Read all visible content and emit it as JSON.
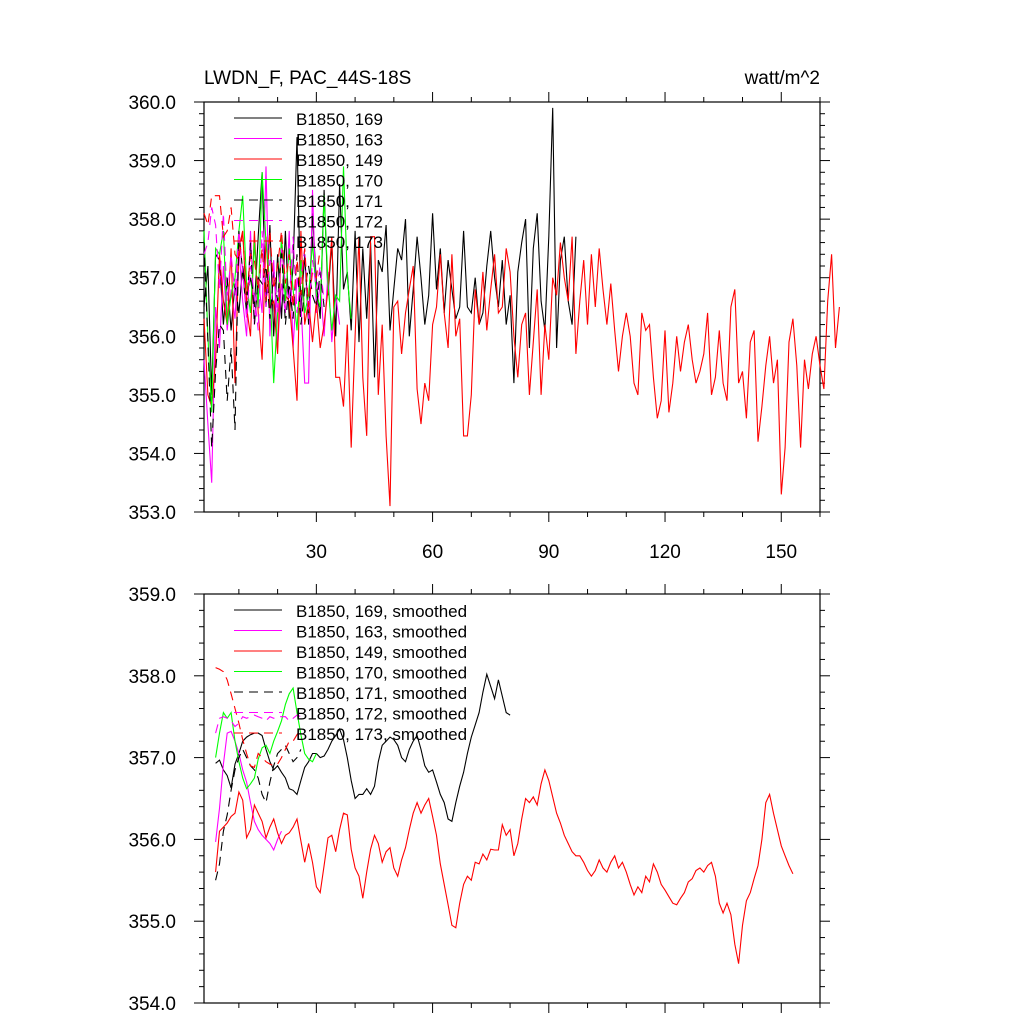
{
  "figure": {
    "title_left": "LWDN_F, PAC_44S-18S",
    "title_right": "watt/m^2"
  },
  "colors": {
    "black": "#000000",
    "magenta": "#ff00ff",
    "red": "#ff0000",
    "green": "#00ff00"
  },
  "chart_data": [
    {
      "type": "line",
      "panel": "top",
      "xlim": [
        1,
        160
      ],
      "ylim": [
        353.0,
        360.0
      ],
      "x_ticks": [
        30,
        60,
        90,
        120,
        150
      ],
      "x_tick_labels": [
        "30",
        "60",
        "90",
        "120",
        "150"
      ],
      "y_ticks": [
        353,
        354,
        355,
        356,
        357,
        358,
        359,
        360
      ],
      "y_tick_labels": [
        "353.0",
        "354.0",
        "355.0",
        "356.0",
        "357.0",
        "358.0",
        "359.0",
        "360.0"
      ],
      "legend_placement": "top-left",
      "series": [
        {
          "name": "B1850, 169",
          "color": "#000000",
          "dash": "solid",
          "x_start": 1,
          "values": [
            356.5,
            357.2,
            355.0,
            357.4,
            357.3,
            356.2,
            357.0,
            356.1,
            356.9,
            356.4,
            357.2,
            356.7,
            357.0,
            356.5,
            357.7,
            358.8,
            356.5,
            357.9,
            356.0,
            357.4,
            356.3,
            357.8,
            356.3,
            357.2,
            359.4,
            356.4,
            357.4,
            356.2,
            358.1,
            356.9,
            356.3,
            358.5,
            356.7,
            357.6,
            356.0,
            358.6,
            356.8,
            357.1,
            356.1,
            357.8,
            355.9,
            357.5,
            356.3,
            357.6,
            355.3,
            357.3,
            357.1,
            357.9,
            356.1,
            356.8,
            357.5,
            357.3,
            358.0,
            356.0,
            356.8,
            357.7,
            357.0,
            356.2,
            356.7,
            358.1,
            356.8,
            357.5,
            356.4,
            357.3,
            356.8,
            356.3,
            356.5,
            357.8,
            356.5,
            356.4,
            357.0,
            356.2,
            356.4,
            357.2,
            357.8,
            357.0,
            356.5,
            357.3,
            356.2,
            356.7,
            355.2,
            357.1,
            357.6,
            358.0,
            355.8,
            357.5,
            358.1,
            356.6,
            356.1,
            357.7,
            359.9,
            355.8,
            357.3,
            357.7,
            356.6,
            356.2,
            357.7
          ]
        },
        {
          "name": "B1850, 163",
          "color": "#ff00ff",
          "dash": "solid",
          "x_start": 1,
          "values": [
            355.6,
            354.5,
            353.5,
            356.5,
            355.8,
            357.2,
            356.1,
            356.8,
            356.3,
            357.5,
            356.6,
            356.0,
            357.8,
            356.2,
            357.0,
            356.4,
            358.9,
            356.0,
            357.3,
            355.8,
            356.9,
            356.4,
            357.8,
            355.8,
            357.0,
            356.6,
            355.2,
            355.2,
            358.5,
            356.4,
            356.9,
            356.0,
            357.1,
            355.9,
            356.7,
            356.2
          ]
        },
        {
          "name": "B1850, 149",
          "color": "#ff0000",
          "dash": "solid",
          "x_start": 1,
          "values": [
            356.3,
            355.0,
            354.8,
            355.6,
            357.4,
            356.6,
            356.2,
            357.5,
            355.2,
            357.5,
            357.8,
            356.5,
            356.0,
            357.8,
            356.4,
            355.6,
            357.7,
            356.5,
            356.6,
            355.7,
            357.7,
            356.7,
            356.6,
            355.8,
            354.9,
            357.8,
            356.2,
            356.6,
            355.9,
            356.6,
            355.8,
            356.2,
            356.8,
            357.7,
            355.3,
            355.3,
            354.8,
            356.2,
            354.1,
            356.0,
            357.7,
            355.3,
            354.3,
            357.7,
            357.7,
            355.0,
            356.2,
            354.3,
            353.1,
            356.5,
            356.6,
            355.7,
            356.4,
            356.8,
            357.2,
            355.1,
            354.5,
            355.2,
            354.9,
            356.2,
            356.5,
            357.4,
            356.4,
            355.8,
            357.4,
            356.0,
            356.3,
            354.3,
            354.3,
            355.0,
            356.8,
            356.2,
            357.1,
            356.1,
            356.8,
            357.4,
            356.4,
            356.5,
            357.5,
            357.1,
            356.0,
            355.3,
            356.2,
            356.4,
            355.0,
            355.9,
            356.8,
            355.0,
            356.2,
            355.6,
            357.0,
            356.7,
            357.6,
            357.0,
            356.6,
            357.7,
            355.7,
            356.6,
            357.3,
            356.2,
            357.4,
            356.5,
            357.5,
            356.8,
            356.2,
            356.9,
            356.1,
            355.4,
            356.0,
            356.4,
            356.0,
            355.2,
            355.0,
            356.4,
            356.1,
            356.2,
            355.3,
            354.6,
            354.9,
            356.1,
            354.7,
            355.2,
            356.0,
            355.4,
            355.9,
            356.2,
            355.6,
            355.2,
            355.4,
            355.7,
            356.4,
            355.0,
            355.3,
            356.1,
            355.2,
            354.9,
            356.5,
            356.8,
            355.2,
            355.4,
            354.6,
            355.9,
            356.1,
            354.2,
            354.8,
            355.5,
            356.0,
            355.2,
            355.6,
            353.3,
            354.1,
            355.9,
            356.3,
            355.5,
            354.1,
            355.6,
            355.1,
            355.7,
            356.0,
            355.5,
            355.1,
            356.6,
            357.4,
            355.8,
            356.5
          ]
        },
        {
          "name": "B1850, 170",
          "color": "#00ff00",
          "dash": "solid",
          "x_start": 1,
          "values": [
            357.8,
            356.0,
            354.7,
            357.5,
            357.4,
            357.8,
            356.2,
            356.7,
            357.0,
            357.8,
            358.4,
            356.9,
            356.4,
            357.6,
            356.5,
            358.8,
            357.6,
            356.9,
            355.2,
            356.4,
            357.7,
            356.6,
            357.5,
            356.8,
            356.1,
            357.3,
            356.4,
            356.7,
            357.6,
            356.7,
            356.5,
            358.4,
            356.9,
            356.1,
            356.7,
            356.6,
            358.9,
            357.0,
            356.3
          ]
        },
        {
          "name": "B1850, 171",
          "color": "#000000",
          "dash": "dashed",
          "x_start": 1,
          "values": [
            357.6,
            355.9,
            354.1,
            355.4,
            356.2,
            356.1,
            354.9,
            355.8,
            354.4,
            357.8,
            357.1,
            356.4,
            357.6,
            356.2,
            357.0,
            356.9,
            357.2,
            356.3,
            357.1,
            356.6,
            357.5,
            356.2,
            356.9,
            356.3,
            357.4,
            356.2,
            356.8,
            357.2,
            356.7,
            356.5,
            357.1,
            356.5
          ]
        },
        {
          "name": "B1850, 172",
          "color": "#ff00ff",
          "dash": "dashed",
          "x_start": 1,
          "values": [
            357.4,
            357.6,
            358.2,
            357.9,
            356.8,
            358.1,
            356.6,
            357.4,
            356.7,
            357.8,
            357.1,
            356.3,
            357.2,
            356.7,
            356.1,
            357.8,
            356.5,
            357.3,
            357.1,
            356.4,
            357.5,
            356.9,
            356.6,
            357.7,
            356.4,
            357.0,
            357.5,
            356.3,
            357.3,
            356.8,
            357.2,
            356.6
          ]
        },
        {
          "name": "B1850, 173",
          "color": "#ff0000",
          "dash": "dashed",
          "x_start": 1,
          "values": [
            358.1,
            357.9,
            358.4,
            358.4,
            358.4,
            357.7,
            357.8,
            358.2,
            357.4,
            357.3,
            357.8,
            356.6,
            357.4,
            357.3,
            356.8,
            357.5,
            356.6,
            357.8,
            356.8,
            357.2,
            357.8,
            356.9,
            357.4,
            356.5,
            357.3,
            356.7,
            357.5,
            356.5,
            357.1,
            357.0,
            357.5
          ]
        }
      ]
    },
    {
      "type": "line",
      "panel": "bottom",
      "xlim": [
        1,
        160
      ],
      "ylim": [
        354.0,
        359.0
      ],
      "x_ticks": [
        30,
        60,
        90,
        120,
        150
      ],
      "x_tick_labels": [],
      "y_ticks": [
        354,
        355,
        356,
        357,
        358,
        359
      ],
      "y_tick_labels": [
        "354.0",
        "355.0",
        "356.0",
        "357.0",
        "358.0",
        "359.0"
      ],
      "legend_placement": "top-left",
      "series": [
        {
          "name": "B1850, 169, smoothed",
          "color": "#000000",
          "dash": "solid",
          "x_start": 4,
          "values": [
            356.93,
            356.97,
            356.85,
            356.78,
            356.63,
            356.92,
            357.05,
            357.2,
            357.25,
            357.28,
            357.3,
            357.3,
            357.27,
            357.1,
            356.95,
            356.85,
            356.9,
            356.82,
            356.75,
            356.62,
            356.6,
            356.55,
            356.72,
            356.88,
            356.95,
            357.05,
            357.05,
            357.0,
            357.02,
            357.1,
            357.2,
            357.27,
            357.35,
            357.22,
            357.0,
            356.72,
            356.5,
            356.55,
            356.55,
            356.62,
            356.55,
            356.65,
            356.95,
            357.15,
            357.2,
            357.25,
            357.22,
            357.15,
            357.0,
            356.95,
            357.1,
            357.2,
            357.27,
            357.1,
            356.9,
            356.82,
            356.85,
            356.7,
            356.55,
            356.45,
            356.25,
            356.22,
            356.45,
            356.65,
            356.82,
            357.05,
            357.25,
            357.4,
            357.55,
            357.8,
            358.02,
            357.87,
            357.72,
            357.95,
            357.75,
            357.55,
            357.52
          ]
        },
        {
          "name": "B1850, 163, smoothed",
          "color": "#ff00ff",
          "dash": "solid",
          "x_start": 4,
          "values": [
            355.97,
            356.38,
            356.92,
            357.3,
            357.32,
            357.2,
            357.05,
            356.85,
            356.7,
            356.45,
            356.22,
            356.12,
            356.05,
            356.0,
            355.95,
            355.87,
            356.0,
            356.1
          ]
        },
        {
          "name": "B1850, 149, smoothed",
          "color": "#ff0000",
          "dash": "solid",
          "x_start": 4,
          "values": [
            355.6,
            356.1,
            356.15,
            356.2,
            356.28,
            356.32,
            356.58,
            356.48,
            356.02,
            356.12,
            356.42,
            356.32,
            356.22,
            356.02,
            356.15,
            356.25,
            356.08,
            355.95,
            356.05,
            356.08,
            356.15,
            356.25,
            355.98,
            355.72,
            355.95,
            355.72,
            355.42,
            355.35,
            355.68,
            356.02,
            356.05,
            355.85,
            356.12,
            356.32,
            356.3,
            355.88,
            355.65,
            355.55,
            355.28,
            355.6,
            355.88,
            356.05,
            355.95,
            355.72,
            355.85,
            355.9,
            355.65,
            355.55,
            355.75,
            355.9,
            356.12,
            356.32,
            356.45,
            356.32,
            356.42,
            356.5,
            356.28,
            356.05,
            355.7,
            355.45,
            355.2,
            354.95,
            354.92,
            355.22,
            355.45,
            355.55,
            355.5,
            355.72,
            355.7,
            355.82,
            355.75,
            355.88,
            355.87,
            355.87,
            356.18,
            356.05,
            356.12,
            355.8,
            355.95,
            356.25,
            356.5,
            356.45,
            356.52,
            356.42,
            356.68,
            356.85,
            356.72,
            356.52,
            356.32,
            356.2,
            356.05,
            355.95,
            355.85,
            355.8,
            355.8,
            355.72,
            355.62,
            355.55,
            355.62,
            355.75,
            355.65,
            355.6,
            355.72,
            355.8,
            355.65,
            355.72,
            355.6,
            355.45,
            355.32,
            355.42,
            355.35,
            355.55,
            355.48,
            355.7,
            355.6,
            355.45,
            355.38,
            355.3,
            355.22,
            355.2,
            355.28,
            355.35,
            355.48,
            355.52,
            355.62,
            355.65,
            355.6,
            355.68,
            355.72,
            355.55,
            355.22,
            355.1,
            355.22,
            355.08,
            354.72,
            354.48,
            354.95,
            355.25,
            355.35,
            355.52,
            355.68,
            356.0,
            356.45,
            356.55,
            356.32,
            356.12,
            355.92,
            355.8,
            355.68,
            355.58
          ]
        },
        {
          "name": "B1850, 170, smoothed",
          "color": "#00ff00",
          "dash": "solid",
          "x_start": 4,
          "values": [
            357.0,
            357.3,
            357.55,
            357.48,
            357.55,
            357.2,
            356.95,
            356.75,
            356.62,
            356.68,
            356.75,
            356.98,
            357.12,
            357.15,
            357.05,
            357.2,
            357.32,
            357.45,
            357.65,
            357.78,
            357.85,
            357.55,
            357.28,
            357.05,
            356.98,
            356.95,
            357.05
          ]
        },
        {
          "name": "B1850, 171, smoothed",
          "color": "#000000",
          "dash": "dashed",
          "x_start": 4,
          "values": [
            355.5,
            355.7,
            356.1,
            356.3,
            356.6,
            356.85,
            357.0,
            357.1,
            357.0,
            356.9,
            356.85,
            356.75,
            356.55,
            356.45,
            356.7,
            356.9,
            357.05,
            357.1,
            357.15,
            357.05,
            356.95,
            357.0,
            357.1
          ]
        },
        {
          "name": "B1850, 172, smoothed",
          "color": "#ff00ff",
          "dash": "dashed",
          "x_start": 4,
          "values": [
            357.3,
            357.48,
            357.5,
            357.48,
            357.45,
            357.38,
            357.42,
            357.5,
            357.48,
            357.5,
            357.52,
            357.5,
            357.48,
            357.45,
            357.5,
            357.48,
            357.5,
            357.5,
            357.5,
            357.45,
            357.48,
            357.52,
            357.5
          ]
        },
        {
          "name": "B1850, 173, smoothed",
          "color": "#ff0000",
          "dash": "dashed",
          "x_start": 4,
          "values": [
            358.1,
            358.08,
            358.05,
            357.95,
            357.78,
            357.6,
            357.42,
            357.22,
            357.05,
            356.9,
            356.88,
            357.05,
            357.0,
            356.95,
            356.92,
            356.9,
            356.92,
            357.0,
            357.1,
            357.2,
            357.2,
            357.28,
            357.35
          ]
        }
      ]
    }
  ]
}
